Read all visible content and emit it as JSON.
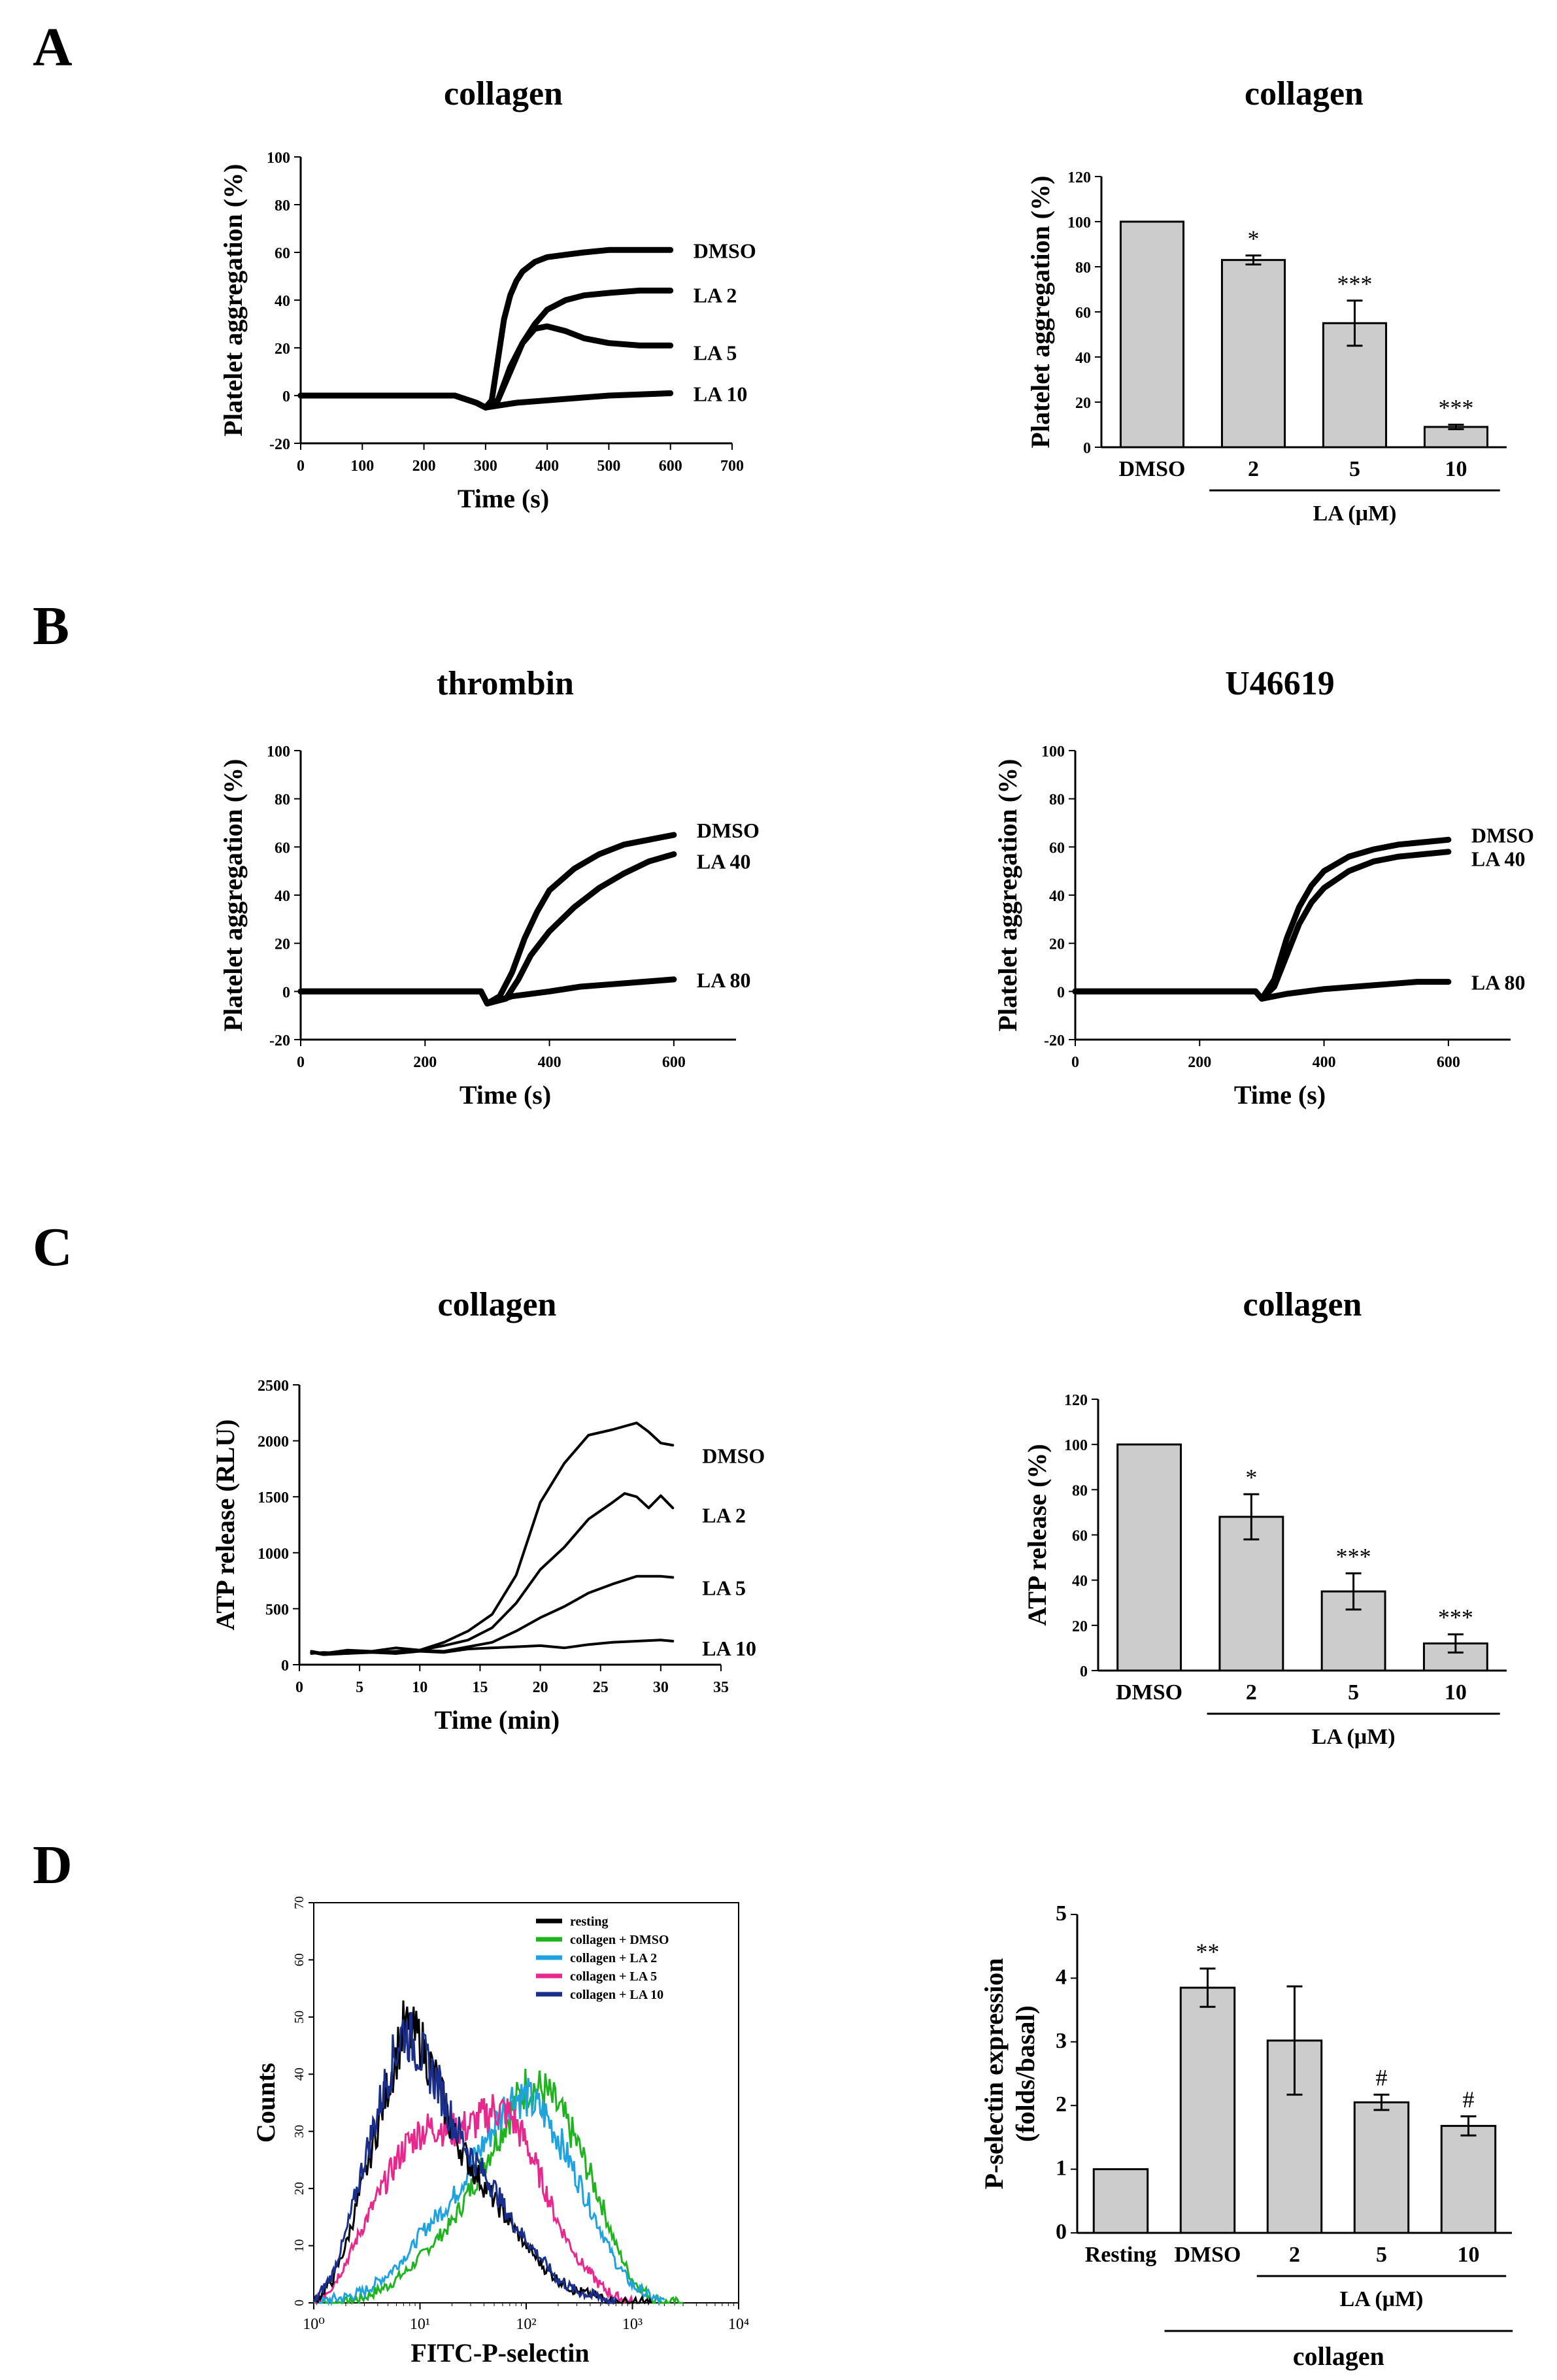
{
  "panels": {
    "A": {
      "letter": "A"
    },
    "B": {
      "letter": "B"
    },
    "C": {
      "letter": "C"
    },
    "D": {
      "letter": "D"
    }
  },
  "chart_data": [
    {
      "id": "A-left",
      "type": "line",
      "title": "collagen",
      "xlabel": "Time (s)",
      "ylabel": "Platelet aggregation (%)",
      "xlim": [
        0,
        700
      ],
      "ylim": [
        -20,
        100
      ],
      "xticks": [
        0,
        100,
        200,
        300,
        400,
        500,
        600,
        700
      ],
      "yticks": [
        -20,
        0,
        20,
        40,
        60,
        80,
        100
      ],
      "series": [
        {
          "name": "DMSO",
          "x": [
            0,
            250,
            285,
            300,
            310,
            320,
            330,
            340,
            350,
            360,
            380,
            400,
            430,
            460,
            500,
            550,
            600
          ],
          "y": [
            0,
            0,
            -3,
            -5,
            -2,
            15,
            32,
            42,
            48,
            52,
            56,
            58,
            59,
            60,
            61,
            61,
            61
          ]
        },
        {
          "name": "LA 2",
          "x": [
            0,
            250,
            285,
            300,
            320,
            340,
            360,
            380,
            400,
            430,
            460,
            500,
            550,
            600
          ],
          "y": [
            0,
            0,
            -3,
            -5,
            -2,
            10,
            22,
            30,
            36,
            40,
            42,
            43,
            44,
            44
          ]
        },
        {
          "name": "LA 5",
          "x": [
            0,
            250,
            285,
            300,
            320,
            340,
            360,
            380,
            400,
            430,
            460,
            500,
            550,
            600
          ],
          "y": [
            0,
            0,
            -3,
            -5,
            -2,
            12,
            22,
            28,
            29,
            27,
            24,
            22,
            21,
            21
          ]
        },
        {
          "name": "LA 10",
          "x": [
            0,
            250,
            285,
            300,
            350,
            400,
            450,
            500,
            550,
            600
          ],
          "y": [
            0,
            0,
            -3,
            -5,
            -3,
            -2,
            -1,
            0,
            0.5,
            1
          ]
        }
      ]
    },
    {
      "id": "A-right",
      "type": "bar",
      "title": "collagen",
      "ylabel": "Platelet aggregation (%)",
      "ylim": [
        0,
        120
      ],
      "yticks": [
        0,
        20,
        40,
        60,
        80,
        100,
        120
      ],
      "categories": [
        "DMSO",
        "2",
        "5",
        "10"
      ],
      "values": [
        100,
        83,
        55,
        9
      ],
      "errors": [
        0,
        2,
        10,
        1
      ],
      "significance": [
        "",
        "*",
        "***",
        "***"
      ],
      "group_label": "LA (μM)"
    },
    {
      "id": "B-left",
      "type": "line",
      "title": "thrombin",
      "xlabel": "Time (s)",
      "ylabel": "Platelet aggregation (%)",
      "xlim": [
        0,
        700
      ],
      "ylim": [
        -20,
        100
      ],
      "xticks": [
        0,
        200,
        400,
        600
      ],
      "yticks": [
        -20,
        0,
        20,
        40,
        60,
        80,
        100
      ],
      "series": [
        {
          "name": "DMSO",
          "x": [
            0,
            290,
            300,
            320,
            340,
            360,
            380,
            400,
            440,
            480,
            520,
            560,
            600
          ],
          "y": [
            0,
            0,
            -5,
            -2,
            8,
            22,
            33,
            42,
            51,
            57,
            61,
            63,
            65
          ]
        },
        {
          "name": "LA 40",
          "x": [
            0,
            290,
            300,
            330,
            350,
            370,
            400,
            440,
            480,
            520,
            560,
            600
          ],
          "y": [
            0,
            0,
            -5,
            -3,
            5,
            15,
            25,
            35,
            43,
            49,
            54,
            57
          ]
        },
        {
          "name": "LA 80",
          "x": [
            0,
            290,
            300,
            340,
            400,
            450,
            500,
            550,
            600
          ],
          "y": [
            0,
            0,
            -5,
            -2,
            0,
            2,
            3,
            4,
            5
          ]
        }
      ]
    },
    {
      "id": "B-right",
      "type": "line",
      "title": "U46619",
      "xlabel": "Time (s)",
      "ylabel": "Platelet aggregation (%)",
      "xlim": [
        0,
        700
      ],
      "ylim": [
        -20,
        100
      ],
      "xticks": [
        0,
        200,
        400,
        600
      ],
      "yticks": [
        -20,
        0,
        20,
        40,
        60,
        80,
        100
      ],
      "series": [
        {
          "name": "DMSO",
          "x": [
            0,
            290,
            300,
            320,
            340,
            360,
            380,
            400,
            440,
            480,
            520,
            560,
            600
          ],
          "y": [
            0,
            0,
            -3,
            5,
            22,
            35,
            44,
            50,
            56,
            59,
            61,
            62,
            63
          ]
        },
        {
          "name": "LA 40",
          "x": [
            0,
            290,
            300,
            320,
            340,
            360,
            380,
            400,
            440,
            480,
            520,
            560,
            600
          ],
          "y": [
            0,
            0,
            -3,
            2,
            15,
            28,
            37,
            43,
            50,
            54,
            56,
            57,
            58
          ]
        },
        {
          "name": "LA 80",
          "x": [
            0,
            290,
            300,
            340,
            400,
            450,
            500,
            550,
            600
          ],
          "y": [
            0,
            0,
            -3,
            -1,
            1,
            2,
            3,
            4,
            4
          ]
        }
      ]
    },
    {
      "id": "C-left",
      "type": "line",
      "title": "collagen",
      "xlabel": "Time (min)",
      "ylabel": "ATP release (RLU)",
      "xlim": [
        0,
        35
      ],
      "ylim": [
        0,
        2500
      ],
      "xticks": [
        0,
        5,
        10,
        15,
        20,
        25,
        30,
        35
      ],
      "yticks": [
        0,
        500,
        1000,
        1500,
        2000,
        2500
      ],
      "series": [
        {
          "name": "DMSO",
          "x": [
            1,
            2,
            4,
            6,
            8,
            10,
            12,
            14,
            16,
            18,
            20,
            22,
            24,
            26,
            28,
            29,
            30,
            31
          ],
          "y": [
            120,
            100,
            130,
            120,
            150,
            130,
            200,
            300,
            450,
            800,
            1450,
            1800,
            2050,
            2100,
            2160,
            2080,
            1980,
            1960
          ]
        },
        {
          "name": "LA 2",
          "x": [
            1,
            2,
            4,
            6,
            8,
            10,
            12,
            14,
            16,
            18,
            20,
            22,
            24,
            26,
            27,
            28,
            29,
            30,
            31
          ],
          "y": [
            110,
            100,
            120,
            110,
            120,
            130,
            170,
            220,
            330,
            550,
            850,
            1050,
            1300,
            1450,
            1530,
            1500,
            1400,
            1510,
            1400
          ]
        },
        {
          "name": "LA 5",
          "x": [
            1,
            2,
            4,
            6,
            8,
            10,
            12,
            14,
            16,
            18,
            20,
            22,
            24,
            26,
            28,
            30,
            31
          ],
          "y": [
            100,
            110,
            100,
            120,
            100,
            130,
            120,
            160,
            200,
            300,
            420,
            520,
            640,
            720,
            790,
            790,
            780
          ]
        },
        {
          "name": "LA 10",
          "x": [
            1,
            2,
            4,
            6,
            8,
            10,
            12,
            14,
            16,
            18,
            20,
            22,
            24,
            26,
            28,
            30,
            31
          ],
          "y": [
            110,
            90,
            100,
            110,
            100,
            120,
            110,
            140,
            150,
            160,
            170,
            150,
            180,
            200,
            210,
            220,
            210
          ]
        }
      ]
    },
    {
      "id": "C-right",
      "type": "bar",
      "title": "collagen",
      "ylabel": "ATP release (%)",
      "ylim": [
        0,
        120
      ],
      "yticks": [
        0,
        20,
        40,
        60,
        80,
        100,
        120
      ],
      "categories": [
        "DMSO",
        "2",
        "5",
        "10"
      ],
      "values": [
        100,
        68,
        35,
        12
      ],
      "errors": [
        0,
        10,
        8,
        4
      ],
      "significance": [
        "",
        "*",
        "***",
        "***"
      ],
      "group_label": "LA (μM)"
    },
    {
      "id": "D-left",
      "type": "line",
      "xlabel": "FITC-P-selectin",
      "ylabel": "Counts",
      "xscale": "log",
      "xlim": [
        1,
        10000
      ],
      "ylim": [
        0,
        70
      ],
      "xticks": [
        "10⁰",
        "10¹",
        "10²",
        "10³",
        "10⁴"
      ],
      "yticks": [
        0,
        10,
        20,
        30,
        40,
        50,
        60,
        70
      ],
      "legend_position": "top-right",
      "series": [
        {
          "name": "resting",
          "color": "#000000",
          "x": [
            1,
            1.5,
            2,
            3,
            5,
            7,
            10,
            15,
            20,
            30,
            50,
            70,
            100,
            150,
            200,
            300,
            500,
            700,
            1000,
            1500
          ],
          "y": [
            0,
            4,
            10,
            22,
            38,
            48,
            46,
            38,
            30,
            24,
            18,
            14,
            10,
            6,
            4,
            2,
            1,
            0,
            0,
            0
          ]
        },
        {
          "name": "collagen + DMSO",
          "color": "#1fb41f",
          "x": [
            1,
            2,
            3,
            5,
            8,
            10,
            20,
            30,
            50,
            80,
            100,
            150,
            200,
            300,
            500,
            700,
            1000,
            1500,
            2000,
            3000
          ],
          "y": [
            0,
            0,
            1,
            3,
            6,
            8,
            14,
            20,
            28,
            35,
            38,
            37,
            34,
            28,
            18,
            10,
            4,
            1,
            0,
            0
          ]
        },
        {
          "name": "collagen + LA 2",
          "color": "#1fa3e0",
          "x": [
            1,
            2,
            3,
            5,
            8,
            10,
            20,
            30,
            50,
            70,
            100,
            150,
            200,
            300,
            500,
            700,
            1000,
            1500,
            2000
          ],
          "y": [
            0,
            1,
            2,
            5,
            9,
            12,
            18,
            24,
            31,
            36,
            36,
            33,
            29,
            22,
            13,
            7,
            3,
            1,
            0
          ]
        },
        {
          "name": "collagen + LA 5",
          "color": "#e8288c",
          "x": [
            1,
            1.5,
            2,
            3,
            5,
            7,
            10,
            15,
            20,
            30,
            50,
            70,
            100,
            150,
            200,
            300,
            500,
            700,
            1000
          ],
          "y": [
            0,
            3,
            7,
            14,
            22,
            27,
            30,
            31,
            30,
            31,
            34,
            33,
            28,
            20,
            14,
            8,
            3,
            1,
            0
          ]
        },
        {
          "name": "collagen + LA 10",
          "color": "#1a2f8c",
          "x": [
            1,
            1.5,
            2,
            3,
            5,
            7,
            10,
            15,
            20,
            30,
            50,
            70,
            100,
            150,
            200,
            300,
            500,
            700
          ],
          "y": [
            0,
            5,
            12,
            25,
            40,
            48,
            44,
            38,
            32,
            26,
            20,
            15,
            11,
            7,
            4,
            2,
            1,
            0
          ]
        }
      ]
    },
    {
      "id": "D-right",
      "type": "bar",
      "ylabel": "P-selectin expression (folds/basal)",
      "ylim": [
        0,
        5
      ],
      "yticks": [
        0,
        1,
        2,
        3,
        4,
        5
      ],
      "categories": [
        "Resting",
        "DMSO",
        "2",
        "5",
        "10"
      ],
      "values": [
        1,
        3.85,
        3.02,
        2.05,
        1.68
      ],
      "errors": [
        0,
        0.3,
        0.85,
        0.12,
        0.15
      ],
      "significance": [
        "",
        "**",
        "",
        "#",
        "#"
      ],
      "group_label": "LA (μM)",
      "outer_group_label": "collagen"
    }
  ],
  "colors": {
    "bar_fill": "#cccccc",
    "line": "#000000"
  }
}
